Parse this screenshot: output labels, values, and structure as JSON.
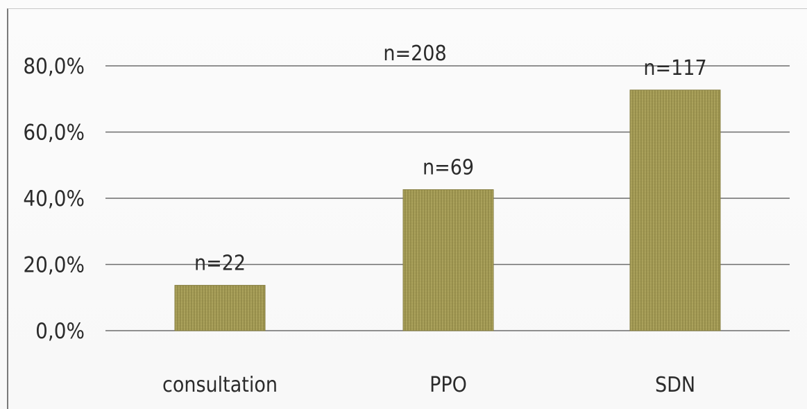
{
  "chart_data": {
    "type": "bar",
    "categories": [
      "consultation",
      "PPO",
      "SDN"
    ],
    "values": [
      13.7,
      42.6,
      72.7
    ],
    "value_unit": "%",
    "data_labels": [
      "n=22",
      "n=69",
      "n=117"
    ],
    "annotations": [
      "n=208"
    ],
    "ylim": [
      0,
      80
    ],
    "yticks": [
      0,
      20,
      40,
      60,
      80
    ],
    "ytick_labels": [
      "0,0%",
      "20,0%",
      "40,0%",
      "60,0%",
      "80,0%"
    ],
    "title": "",
    "xlabel": "",
    "ylabel": "",
    "grid": true,
    "legend": "none",
    "colors": {
      "bar": "#a39a56",
      "bar_light": "#b8b06f",
      "bar_dark": "#857d3f",
      "grid": "#6c6c6c",
      "text": "#2b2b2b"
    }
  }
}
